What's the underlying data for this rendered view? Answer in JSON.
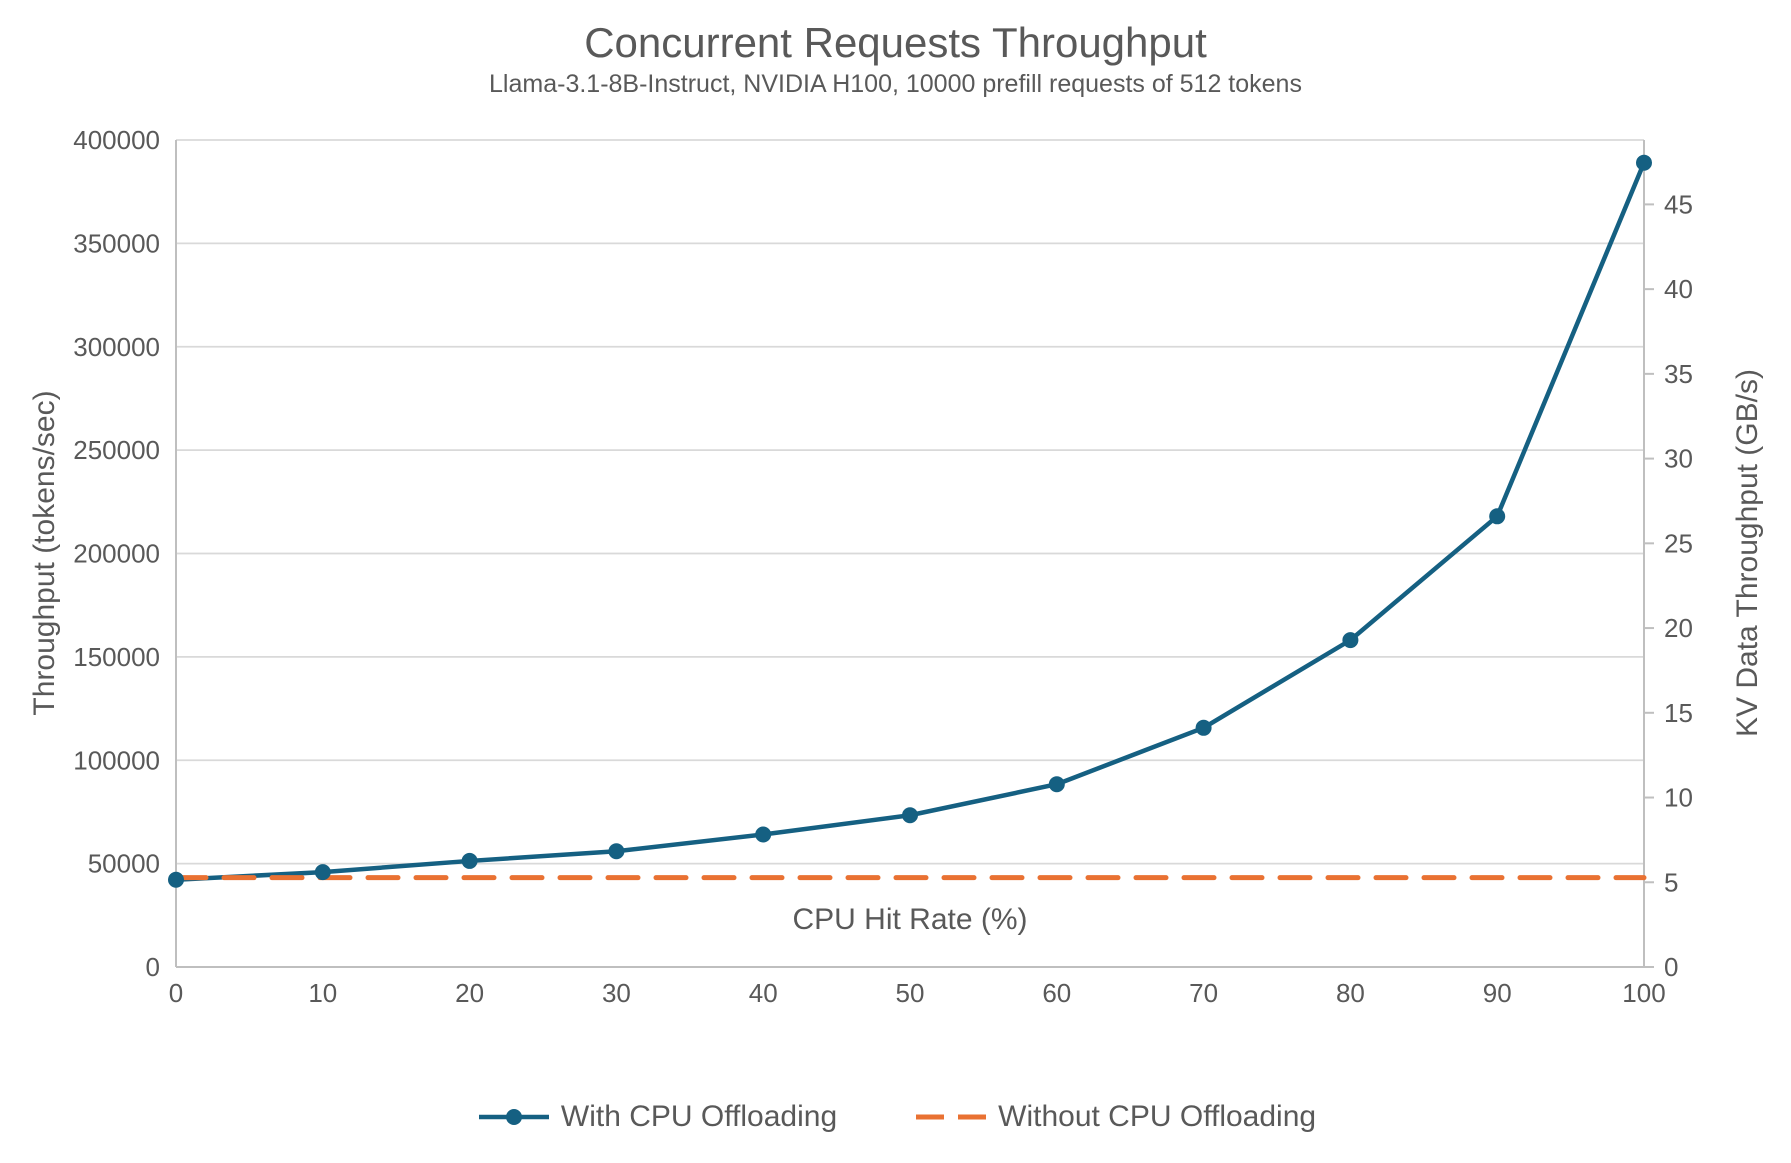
{
  "chart_data": {
    "type": "line",
    "title": "Concurrent Requests Throughput",
    "subtitle": "Llama-3.1-8B-Instruct, NVIDIA H100, 10000 prefill requests of 512 tokens",
    "xlabel": "CPU Hit Rate (%)",
    "ylabel_left": "Throughput (tokens/sec)",
    "ylabel_right": "KV Data Throughput (GB/s)",
    "x": [
      0,
      10,
      20,
      30,
      40,
      50,
      60,
      70,
      80,
      90,
      100
    ],
    "series": [
      {
        "name": "With CPU Offloading",
        "axis": "left",
        "color": "#156082",
        "style": "solid",
        "marker": "circle",
        "values": [
          42200,
          45900,
          51300,
          56000,
          64100,
          73400,
          88400,
          115700,
          158100,
          218000,
          389000
        ]
      },
      {
        "name": "Without CPU Offloading",
        "axis": "left",
        "color": "#E97132",
        "style": "dashed",
        "marker": "none",
        "values": [
          43200,
          43200,
          43200,
          43200,
          43200,
          43200,
          43200,
          43200,
          43200,
          43200,
          43200
        ]
      }
    ],
    "left_axis": {
      "min": 0,
      "max": 400000,
      "tick_step": 50000
    },
    "right_axis": {
      "min": 0,
      "max": 48.8,
      "tick_step": 5,
      "max_tick_shown": 45
    },
    "grid": "horizontal",
    "legend_position": "bottom"
  },
  "colors": {
    "text": "#595959",
    "gridline": "#D9D9D9",
    "axis_line": "#BFBFBF",
    "background": "#FFFFFF"
  }
}
